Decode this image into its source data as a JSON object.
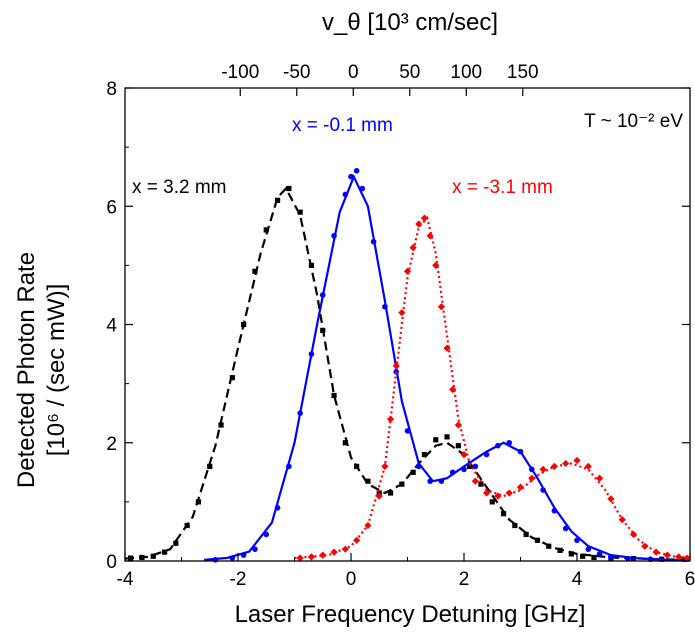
{
  "chart_data": {
    "type": "scatter",
    "title": "",
    "xlabel": "Laser Frequency Detuning [GHz]",
    "ylabel_line1": "Detected Photon Rate",
    "ylabel_line2": "[10⁶ / (sec mW)]",
    "top_xlabel": "v_θ [10³ cm/sec]",
    "xlim": [
      -4,
      6
    ],
    "ylim": [
      0,
      8
    ],
    "xticks": [
      -4,
      -2,
      0,
      2,
      4,
      6
    ],
    "yticks": [
      0,
      2,
      4,
      6,
      8
    ],
    "top_ticks": [
      -100,
      -50,
      0,
      50,
      100,
      150
    ],
    "top_axis_zero_at_ghz": 0.04,
    "top_axis_ghz_per_unit": 0.02,
    "annotations": {
      "temperature": "T ~ 10⁻² eV",
      "series_black": "x = 3.2 mm",
      "series_blue": "x = -0.1 mm",
      "series_red": "x = -3.1 mm"
    },
    "series": [
      {
        "name": "x = 3.2 mm",
        "color": "#000000",
        "marker": "square",
        "fit_style": "dashed",
        "points": [
          [
            -3.9,
            0.05
          ],
          [
            -3.7,
            0.06
          ],
          [
            -3.5,
            0.08
          ],
          [
            -3.3,
            0.15
          ],
          [
            -3.1,
            0.3
          ],
          [
            -2.9,
            0.6
          ],
          [
            -2.7,
            1.0
          ],
          [
            -2.5,
            1.6
          ],
          [
            -2.3,
            2.3
          ],
          [
            -2.1,
            3.1
          ],
          [
            -1.9,
            4.0
          ],
          [
            -1.7,
            4.9
          ],
          [
            -1.5,
            5.6
          ],
          [
            -1.3,
            6.1
          ],
          [
            -1.1,
            6.3
          ],
          [
            -0.9,
            5.9
          ],
          [
            -0.7,
            5.0
          ],
          [
            -0.5,
            3.9
          ],
          [
            -0.3,
            2.8
          ],
          [
            -0.1,
            2.0
          ],
          [
            0.1,
            1.6
          ],
          [
            0.3,
            1.35
          ],
          [
            0.5,
            1.15
          ],
          [
            0.7,
            1.15
          ],
          [
            0.9,
            1.3
          ],
          [
            1.1,
            1.5
          ],
          [
            1.3,
            1.8
          ],
          [
            1.5,
            2.05
          ],
          [
            1.7,
            2.1
          ],
          [
            1.9,
            1.95
          ],
          [
            2.1,
            1.6
          ],
          [
            2.3,
            1.3
          ],
          [
            2.5,
            1.0
          ],
          [
            2.7,
            0.8
          ],
          [
            2.9,
            0.6
          ],
          [
            3.1,
            0.45
          ],
          [
            3.3,
            0.35
          ],
          [
            3.5,
            0.25
          ],
          [
            3.7,
            0.18
          ],
          [
            3.9,
            0.12
          ],
          [
            4.1,
            0.08
          ],
          [
            4.3,
            0.06
          ],
          [
            4.6,
            0.05
          ],
          [
            5.0,
            0.04
          ],
          [
            5.5,
            0.03
          ],
          [
            5.9,
            0.03
          ]
        ],
        "fit": [
          [
            -4.0,
            0.04
          ],
          [
            -3.6,
            0.07
          ],
          [
            -3.2,
            0.2
          ],
          [
            -2.8,
            0.75
          ],
          [
            -2.4,
            1.95
          ],
          [
            -2.0,
            3.6
          ],
          [
            -1.6,
            5.2
          ],
          [
            -1.3,
            6.15
          ],
          [
            -1.15,
            6.3
          ],
          [
            -0.9,
            5.85
          ],
          [
            -0.6,
            4.5
          ],
          [
            -0.3,
            2.8
          ],
          [
            0.0,
            1.75
          ],
          [
            0.3,
            1.3
          ],
          [
            0.6,
            1.15
          ],
          [
            0.9,
            1.3
          ],
          [
            1.2,
            1.65
          ],
          [
            1.5,
            1.95
          ],
          [
            1.7,
            2.0
          ],
          [
            2.0,
            1.8
          ],
          [
            2.4,
            1.25
          ],
          [
            2.8,
            0.7
          ],
          [
            3.2,
            0.4
          ],
          [
            3.6,
            0.22
          ],
          [
            4.0,
            0.12
          ],
          [
            4.6,
            0.06
          ],
          [
            5.4,
            0.03
          ],
          [
            6.0,
            0.02
          ]
        ]
      },
      {
        "name": "x = -0.1 mm",
        "color": "#0000ff",
        "marker": "circle",
        "fit_style": "solid",
        "points": [
          [
            -2.4,
            0.02
          ],
          [
            -2.1,
            0.05
          ],
          [
            -1.9,
            0.1
          ],
          [
            -1.7,
            0.2
          ],
          [
            -1.5,
            0.45
          ],
          [
            -1.3,
            0.9
          ],
          [
            -1.1,
            1.6
          ],
          [
            -0.9,
            2.5
          ],
          [
            -0.7,
            3.5
          ],
          [
            -0.5,
            4.5
          ],
          [
            -0.3,
            5.5
          ],
          [
            -0.1,
            6.2
          ],
          [
            0.0,
            6.5
          ],
          [
            0.1,
            6.6
          ],
          [
            0.2,
            6.3
          ],
          [
            0.4,
            5.4
          ],
          [
            0.6,
            4.3
          ],
          [
            0.8,
            3.2
          ],
          [
            1.0,
            2.2
          ],
          [
            1.2,
            1.6
          ],
          [
            1.4,
            1.35
          ],
          [
            1.6,
            1.35
          ],
          [
            1.8,
            1.5
          ],
          [
            2.0,
            1.55
          ],
          [
            2.2,
            1.6
          ],
          [
            2.4,
            1.8
          ],
          [
            2.6,
            1.95
          ],
          [
            2.8,
            2.0
          ],
          [
            3.0,
            1.85
          ],
          [
            3.2,
            1.55
          ],
          [
            3.4,
            1.2
          ],
          [
            3.6,
            0.85
          ],
          [
            3.8,
            0.55
          ],
          [
            4.0,
            0.35
          ],
          [
            4.2,
            0.2
          ],
          [
            4.4,
            0.12
          ],
          [
            4.6,
            0.07
          ],
          [
            4.9,
            0.04
          ],
          [
            5.3,
            0.03
          ]
        ],
        "fit": [
          [
            -2.6,
            0.02
          ],
          [
            -2.2,
            0.05
          ],
          [
            -1.8,
            0.16
          ],
          [
            -1.4,
            0.65
          ],
          [
            -1.0,
            2.0
          ],
          [
            -0.6,
            4.0
          ],
          [
            -0.2,
            5.9
          ],
          [
            0.05,
            6.5
          ],
          [
            0.3,
            6.0
          ],
          [
            0.6,
            4.4
          ],
          [
            0.9,
            2.7
          ],
          [
            1.2,
            1.65
          ],
          [
            1.45,
            1.35
          ],
          [
            1.7,
            1.4
          ],
          [
            2.0,
            1.6
          ],
          [
            2.4,
            1.85
          ],
          [
            2.7,
            2.0
          ],
          [
            3.0,
            1.85
          ],
          [
            3.3,
            1.4
          ],
          [
            3.6,
            0.9
          ],
          [
            3.9,
            0.5
          ],
          [
            4.2,
            0.25
          ],
          [
            4.6,
            0.1
          ],
          [
            5.0,
            0.05
          ],
          [
            5.6,
            0.02
          ],
          [
            6.0,
            0.01
          ]
        ]
      },
      {
        "name": "x = -3.1 mm",
        "color": "#ff0000",
        "marker": "diamond",
        "fit_style": "dotted",
        "points": [
          [
            -0.9,
            0.05
          ],
          [
            -0.7,
            0.07
          ],
          [
            -0.5,
            0.1
          ],
          [
            -0.3,
            0.15
          ],
          [
            -0.1,
            0.2
          ],
          [
            0.1,
            0.35
          ],
          [
            0.3,
            0.6
          ],
          [
            0.5,
            1.1
          ],
          [
            0.6,
            1.6
          ],
          [
            0.7,
            2.4
          ],
          [
            0.8,
            3.3
          ],
          [
            0.9,
            4.2
          ],
          [
            1.0,
            4.9
          ],
          [
            1.1,
            5.3
          ],
          [
            1.2,
            5.7
          ],
          [
            1.3,
            5.8
          ],
          [
            1.4,
            5.5
          ],
          [
            1.5,
            5.0
          ],
          [
            1.6,
            4.3
          ],
          [
            1.7,
            3.6
          ],
          [
            1.8,
            2.9
          ],
          [
            1.9,
            2.3
          ],
          [
            2.0,
            1.8
          ],
          [
            2.2,
            1.35
          ],
          [
            2.4,
            1.15
          ],
          [
            2.6,
            1.1
          ],
          [
            2.8,
            1.15
          ],
          [
            3.0,
            1.25
          ],
          [
            3.2,
            1.4
          ],
          [
            3.4,
            1.55
          ],
          [
            3.6,
            1.6
          ],
          [
            3.8,
            1.65
          ],
          [
            4.0,
            1.7
          ],
          [
            4.2,
            1.6
          ],
          [
            4.4,
            1.4
          ],
          [
            4.6,
            1.05
          ],
          [
            4.8,
            0.7
          ],
          [
            5.0,
            0.45
          ],
          [
            5.2,
            0.25
          ],
          [
            5.4,
            0.15
          ],
          [
            5.6,
            0.1
          ],
          [
            5.8,
            0.07
          ],
          [
            5.95,
            0.05
          ]
        ],
        "fit": [
          [
            -1.0,
            0.05
          ],
          [
            -0.4,
            0.1
          ],
          [
            0.0,
            0.25
          ],
          [
            0.3,
            0.6
          ],
          [
            0.6,
            1.6
          ],
          [
            0.8,
            3.2
          ],
          [
            1.0,
            4.8
          ],
          [
            1.2,
            5.65
          ],
          [
            1.35,
            5.8
          ],
          [
            1.5,
            5.2
          ],
          [
            1.7,
            3.8
          ],
          [
            1.9,
            2.4
          ],
          [
            2.1,
            1.65
          ],
          [
            2.4,
            1.2
          ],
          [
            2.7,
            1.1
          ],
          [
            3.0,
            1.2
          ],
          [
            3.3,
            1.45
          ],
          [
            3.6,
            1.6
          ],
          [
            3.9,
            1.65
          ],
          [
            4.2,
            1.55
          ],
          [
            4.5,
            1.2
          ],
          [
            4.8,
            0.7
          ],
          [
            5.1,
            0.35
          ],
          [
            5.4,
            0.15
          ],
          [
            5.7,
            0.08
          ],
          [
            6.0,
            0.05
          ]
        ]
      }
    ]
  }
}
